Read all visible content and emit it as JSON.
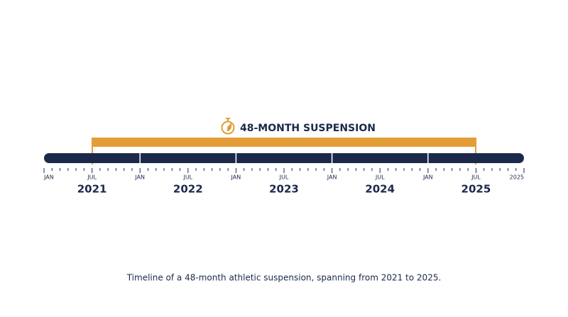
{
  "header": {
    "title": "48-MONTH SUSPENSION"
  },
  "timeline": {
    "tick_labels": [
      "JAN",
      "JUL",
      "JAN",
      "JUL",
      "JAN",
      "JUL",
      "JAN",
      "JUL",
      "JAN",
      "JUL",
      "2025"
    ],
    "year_labels": [
      "2021",
      "2022",
      "2023",
      "2024",
      "2025"
    ]
  },
  "caption": "Timeline of a 48-month athletic suspension, spanning from 2021 to 2025."
}
